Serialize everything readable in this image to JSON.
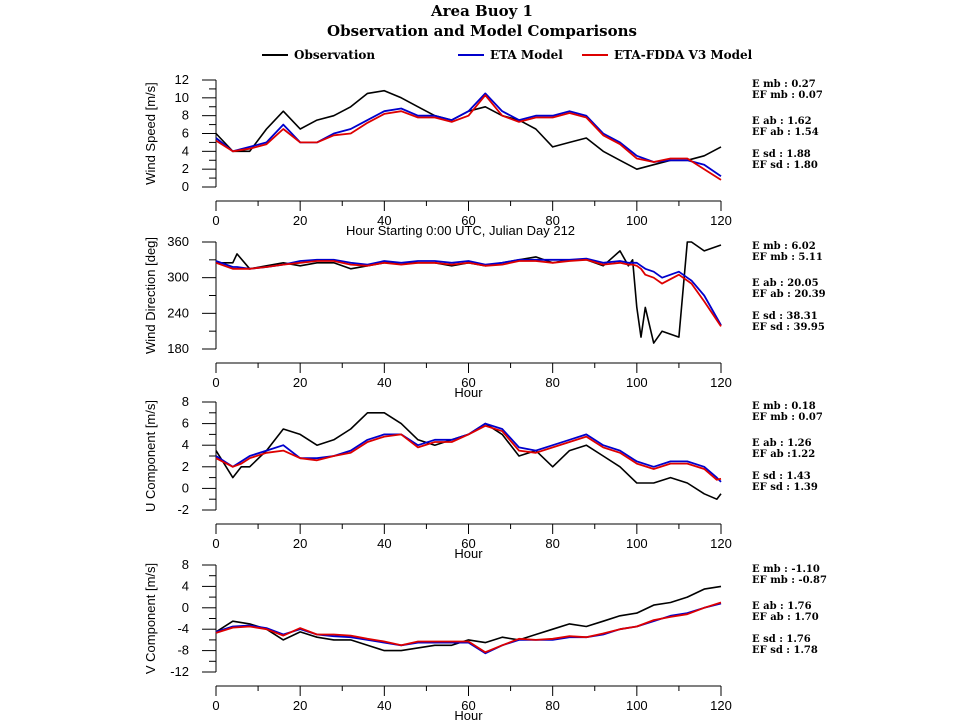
{
  "title": "Area Buoy 1",
  "subtitle": "Observation and Model Comparisons",
  "colors": {
    "observation": "#000000",
    "eta": "#0000cc",
    "fdda": "#dd0000"
  },
  "legend": [
    {
      "key": "observation",
      "label": "Observation"
    },
    {
      "key": "eta",
      "label": "ETA Model"
    },
    {
      "key": "fdda",
      "label": "ETA-FDDA V3 Model"
    }
  ],
  "chart_data": [
    {
      "type": "line",
      "ylabel": "Wind Speed [m/s]",
      "xlabel": "Hour Starting 0:00 UTC, Julian Day 212",
      "xlim": [
        0,
        120
      ],
      "ylim": [
        0,
        12
      ],
      "xticks": [
        0,
        20,
        40,
        60,
        80,
        100,
        120
      ],
      "yticks": [
        0,
        2,
        4,
        6,
        8,
        10,
        12
      ],
      "x": [
        0,
        4,
        8,
        12,
        16,
        20,
        24,
        28,
        32,
        36,
        40,
        44,
        48,
        52,
        56,
        60,
        64,
        68,
        72,
        76,
        80,
        84,
        88,
        92,
        96,
        100,
        104,
        108,
        112,
        116,
        120
      ],
      "series": [
        {
          "key": "observation",
          "values": [
            6.0,
            4.0,
            4.0,
            6.5,
            8.5,
            6.5,
            7.5,
            8.0,
            9.0,
            10.5,
            10.8,
            10.0,
            9.0,
            8.0,
            7.5,
            8.5,
            9.0,
            8.0,
            7.5,
            6.5,
            4.5,
            5.0,
            5.5,
            4.0,
            3.0,
            2.0,
            2.5,
            3.0,
            3.0,
            3.5,
            4.5
          ]
        },
        {
          "key": "eta",
          "values": [
            5.5,
            4.0,
            4.5,
            5.0,
            7.0,
            5.0,
            5.0,
            6.0,
            6.5,
            7.5,
            8.5,
            8.8,
            8.0,
            8.0,
            7.5,
            8.5,
            10.5,
            8.5,
            7.5,
            8.0,
            8.0,
            8.5,
            8.0,
            6.0,
            5.0,
            3.5,
            2.8,
            3.0,
            3.0,
            2.5,
            1.2
          ]
        },
        {
          "key": "fdda",
          "values": [
            5.2,
            4.0,
            4.3,
            4.8,
            6.5,
            5.0,
            5.0,
            5.8,
            6.0,
            7.2,
            8.2,
            8.5,
            7.8,
            7.8,
            7.3,
            8.0,
            10.3,
            8.0,
            7.3,
            7.8,
            7.8,
            8.3,
            7.8,
            5.8,
            4.8,
            3.2,
            2.8,
            3.2,
            3.2,
            2.0,
            0.8
          ]
        }
      ],
      "stats": [
        [
          "E mb : 0.27",
          "EF mb : 0.07"
        ],
        [
          "E ab : 1.62",
          "EF ab : 1.54"
        ],
        [
          "E sd : 1.88",
          "EF sd : 1.80"
        ]
      ]
    },
    {
      "type": "line",
      "ylabel": "Wind Direction [deg]",
      "xlabel": "Hour",
      "xlim": [
        0,
        120
      ],
      "ylim": [
        180,
        360
      ],
      "xticks": [
        0,
        20,
        40,
        60,
        80,
        100,
        120
      ],
      "yticks": [
        180,
        240,
        300,
        360
      ],
      "x": [
        0,
        4,
        5,
        8,
        12,
        16,
        20,
        24,
        28,
        32,
        36,
        40,
        44,
        48,
        52,
        56,
        60,
        64,
        68,
        72,
        76,
        80,
        84,
        88,
        92,
        96,
        98,
        99,
        100,
        101,
        102,
        104,
        106,
        110,
        112,
        113,
        116,
        120
      ],
      "series": [
        {
          "key": "observation",
          "values": [
            325,
            325,
            340,
            315,
            320,
            325,
            320,
            325,
            325,
            315,
            320,
            325,
            325,
            325,
            325,
            320,
            325,
            320,
            325,
            330,
            335,
            325,
            330,
            330,
            320,
            345,
            320,
            330,
            250,
            200,
            250,
            190,
            210,
            200,
            360,
            360,
            345,
            355
          ]
        },
        {
          "key": "eta",
          "values": [
            328,
            318,
            318,
            315,
            318,
            322,
            328,
            330,
            330,
            325,
            322,
            328,
            325,
            328,
            328,
            325,
            328,
            322,
            325,
            330,
            330,
            330,
            330,
            332,
            325,
            328,
            325,
            325,
            325,
            320,
            315,
            310,
            300,
            310,
            300,
            295,
            270,
            220
          ]
        },
        {
          "key": "fdda",
          "values": [
            325,
            315,
            315,
            315,
            318,
            322,
            325,
            328,
            328,
            322,
            320,
            325,
            322,
            325,
            325,
            322,
            325,
            320,
            322,
            328,
            328,
            325,
            328,
            330,
            322,
            325,
            322,
            322,
            320,
            315,
            305,
            300,
            290,
            305,
            295,
            290,
            260,
            218
          ]
        }
      ],
      "stats": [
        [
          "E mb : 6.02",
          "EF mb : 5.11"
        ],
        [
          "E ab : 20.05",
          "EF ab : 20.39"
        ],
        [
          "E sd : 38.31",
          "EF sd : 39.95"
        ]
      ]
    },
    {
      "type": "line",
      "ylabel": "U Component [m/s]",
      "xlabel": "Hour",
      "xlim": [
        0,
        120
      ],
      "ylim": [
        -2,
        8
      ],
      "xticks": [
        0,
        20,
        40,
        60,
        80,
        100,
        120
      ],
      "yticks": [
        -2,
        0,
        2,
        4,
        6,
        8
      ],
      "x": [
        0,
        4,
        6,
        8,
        12,
        16,
        20,
        24,
        28,
        32,
        36,
        40,
        44,
        48,
        52,
        56,
        60,
        64,
        68,
        72,
        76,
        80,
        84,
        88,
        92,
        96,
        100,
        104,
        108,
        112,
        116,
        119,
        120
      ],
      "series": [
        {
          "key": "observation",
          "values": [
            3.5,
            1.0,
            2.0,
            2.0,
            3.5,
            5.5,
            5.0,
            4.0,
            4.5,
            5.5,
            7.0,
            7.0,
            6.0,
            4.5,
            4.0,
            4.5,
            5.0,
            6.0,
            5.0,
            3.0,
            3.5,
            2.0,
            3.5,
            4.0,
            3.0,
            2.0,
            0.5,
            0.5,
            1.0,
            0.5,
            -0.5,
            -1.0,
            -0.5
          ]
        },
        {
          "key": "eta",
          "values": [
            3.0,
            2.0,
            2.5,
            3.0,
            3.5,
            4.0,
            2.8,
            2.8,
            3.0,
            3.5,
            4.5,
            5.0,
            5.0,
            4.0,
            4.5,
            4.5,
            5.0,
            6.0,
            5.5,
            3.8,
            3.5,
            4.0,
            4.5,
            5.0,
            4.0,
            3.5,
            2.5,
            2.0,
            2.5,
            2.5,
            2.0,
            1.0,
            0.6
          ]
        },
        {
          "key": "fdda",
          "values": [
            2.8,
            2.0,
            2.3,
            2.8,
            3.3,
            3.5,
            2.8,
            2.6,
            3.0,
            3.3,
            4.3,
            4.8,
            5.0,
            3.8,
            4.3,
            4.3,
            5.0,
            5.8,
            5.3,
            3.5,
            3.3,
            3.8,
            4.3,
            4.8,
            3.8,
            3.3,
            2.3,
            1.8,
            2.3,
            2.3,
            1.8,
            0.8,
            0.9
          ]
        }
      ],
      "stats": [
        [
          "E mb : 0.18",
          "EF mb : 0.07"
        ],
        [
          "E ab : 1.26",
          "EF ab :1.22"
        ],
        [
          "E sd : 1.43",
          "EF sd : 1.39"
        ]
      ]
    },
    {
      "type": "line",
      "ylabel": "V Component [m/s]",
      "xlabel": "Hour",
      "xlim": [
        0,
        120
      ],
      "ylim": [
        -12,
        8
      ],
      "xticks": [
        0,
        20,
        40,
        60,
        80,
        100,
        120
      ],
      "yticks": [
        -12,
        -8,
        -4,
        0,
        4,
        8
      ],
      "x": [
        0,
        4,
        8,
        12,
        16,
        20,
        24,
        28,
        32,
        36,
        40,
        44,
        48,
        52,
        56,
        60,
        64,
        68,
        72,
        76,
        80,
        84,
        88,
        92,
        96,
        100,
        104,
        108,
        112,
        116,
        120
      ],
      "series": [
        {
          "key": "observation",
          "values": [
            -4.5,
            -2.5,
            -3.0,
            -4.0,
            -6.0,
            -4.5,
            -5.5,
            -6.0,
            -6.0,
            -7.0,
            -8.0,
            -8.0,
            -7.5,
            -7.0,
            -7.0,
            -6.0,
            -6.5,
            -5.5,
            -6.0,
            -5.0,
            -4.0,
            -3.0,
            -3.5,
            -2.5,
            -1.5,
            -1.0,
            0.5,
            1.0,
            2.0,
            3.5,
            4.0
          ]
        },
        {
          "key": "eta",
          "values": [
            -4.5,
            -3.5,
            -3.3,
            -3.8,
            -5.0,
            -4.0,
            -5.0,
            -5.3,
            -5.5,
            -6.0,
            -6.5,
            -7.0,
            -6.5,
            -6.5,
            -6.5,
            -6.5,
            -8.5,
            -7.0,
            -6.0,
            -6.0,
            -6.0,
            -5.5,
            -5.5,
            -5.0,
            -4.0,
            -3.5,
            -2.5,
            -1.5,
            -1.0,
            0.0,
            0.8
          ]
        },
        {
          "key": "fdda",
          "values": [
            -4.7,
            -3.7,
            -3.5,
            -4.0,
            -5.2,
            -3.8,
            -5.0,
            -5.0,
            -5.2,
            -5.8,
            -6.3,
            -7.0,
            -6.3,
            -6.3,
            -6.3,
            -6.3,
            -8.3,
            -7.0,
            -5.8,
            -6.0,
            -5.8,
            -5.3,
            -5.5,
            -4.8,
            -4.0,
            -3.5,
            -2.3,
            -1.7,
            -1.2,
            0.0,
            1.0
          ]
        }
      ],
      "stats": [
        [
          "E mb : -1.10",
          "EF mb : -0.87"
        ],
        [
          "E ab : 1.76",
          "EF ab : 1.70"
        ],
        [
          "E sd : 1.76",
          "EF sd : 1.78"
        ]
      ]
    }
  ]
}
